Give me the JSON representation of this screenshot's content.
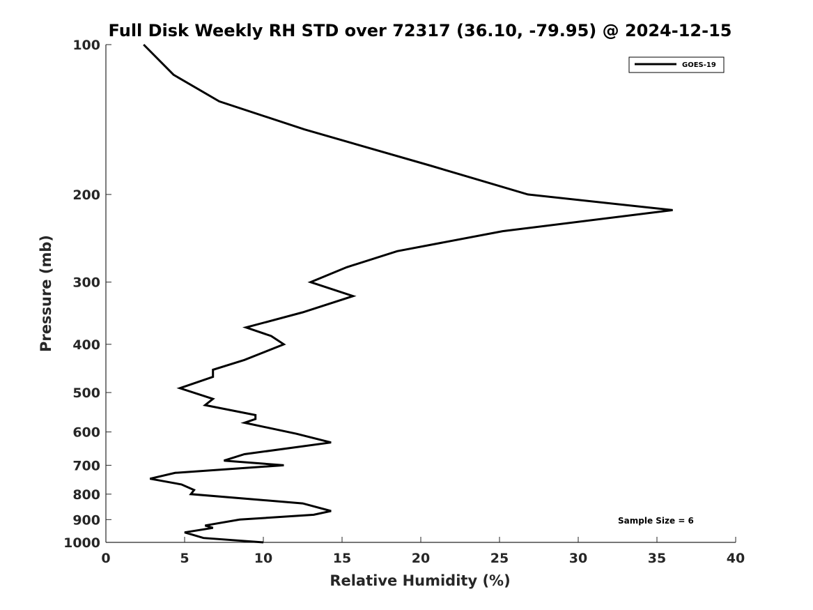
{
  "chart_data": {
    "type": "line",
    "title": "Full Disk Weekly RH STD over 72317 (36.10, -79.95) @ 2024-12-15",
    "xlabel": "Relative Humidity (%)",
    "ylabel": "Pressure (mb)",
    "xlim": [
      0,
      40
    ],
    "ylim": [
      100,
      1000
    ],
    "yscale": "log",
    "y_reversed": true,
    "xticks": [
      0,
      5,
      10,
      15,
      20,
      25,
      30,
      35,
      40
    ],
    "yticks": [
      100,
      200,
      300,
      400,
      500,
      600,
      700,
      800,
      900,
      1000
    ],
    "grid": false,
    "legend_position": "top-right",
    "annotation": "Sample Size = 6",
    "series": [
      {
        "name": "GOES-19",
        "color": "#000000",
        "x": [
          2.4,
          4.3,
          7.2,
          12.6,
          20.6,
          26.8,
          36.0,
          25.2,
          18.5,
          15.3,
          13.0,
          15.7,
          12.5,
          8.9,
          10.5,
          11.3,
          8.8,
          6.8,
          6.8,
          4.7,
          6.8,
          6.3,
          9.5,
          9.5,
          8.8,
          12.1,
          14.3,
          8.8,
          7.5,
          11.3,
          4.4,
          2.8,
          4.8,
          5.6,
          5.4,
          12.5,
          14.3,
          13.2,
          8.5,
          6.3,
          6.8,
          5.0,
          6.2,
          10.0
        ],
        "y": [
          100,
          115,
          130,
          148,
          175,
          200,
          215,
          237,
          260,
          280,
          300,
          320,
          345,
          370,
          385,
          400,
          430,
          450,
          465,
          490,
          515,
          530,
          555,
          565,
          575,
          605,
          630,
          665,
          685,
          700,
          725,
          745,
          765,
          785,
          800,
          835,
          865,
          880,
          900,
          925,
          935,
          955,
          980,
          1000
        ]
      }
    ]
  }
}
